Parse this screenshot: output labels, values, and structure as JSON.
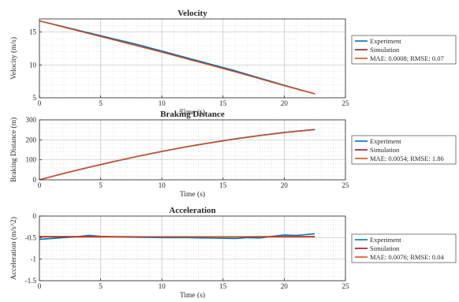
{
  "figure_title": "",
  "colors": {
    "experiment": "#0072BD",
    "simulation": "#A2142F",
    "mae_rmse": "#D95319",
    "grid": "#d6d6d6",
    "axis": "#262626"
  },
  "chart_data": [
    {
      "type": "line",
      "title": "Velocity",
      "xlabel": "Time (s)",
      "ylabel": "Velocity (m/s)",
      "xlim": [
        0,
        25
      ],
      "ylim": [
        5,
        17
      ],
      "xticks": [
        0,
        5,
        10,
        15,
        20,
        25
      ],
      "yticks": [
        5,
        10,
        15
      ],
      "grid": "on (major and minor)",
      "legend_position": "outside-right",
      "series": [
        {
          "name": "Experiment",
          "color": "#0072BD",
          "x": [
            0,
            2,
            4,
            6,
            8,
            10,
            12,
            14,
            16,
            18,
            20,
            22.5
          ],
          "y": [
            16.7,
            15.8,
            14.9,
            14.0,
            13.1,
            12.1,
            11.1,
            10.1,
            9.1,
            8.0,
            6.9,
            5.6
          ]
        },
        {
          "name": "Simulation",
          "color": "#A2142F",
          "x": [
            0,
            2,
            4,
            6,
            8,
            10,
            12,
            14,
            16,
            18,
            20,
            22.5
          ],
          "y": [
            16.7,
            15.75,
            14.8,
            13.85,
            12.9,
            11.95,
            10.95,
            9.95,
            8.95,
            7.9,
            6.85,
            5.6
          ]
        },
        {
          "name": "MAE: 0.0008; RMSE: 0.07",
          "color": "#D95319",
          "x": [
            0,
            2,
            4,
            6,
            8,
            10,
            12,
            14,
            16,
            18,
            20,
            22.5
          ],
          "y": [
            16.7,
            15.75,
            14.8,
            13.85,
            12.9,
            11.95,
            10.95,
            9.95,
            8.95,
            7.9,
            6.85,
            5.6
          ]
        }
      ]
    },
    {
      "type": "line",
      "title": "Braking Distance",
      "xlabel": "Time (s)",
      "ylabel": "Braking Distance (m)",
      "xlim": [
        0,
        25
      ],
      "ylim": [
        0,
        300
      ],
      "xticks": [
        0,
        5,
        10,
        15,
        20,
        25
      ],
      "yticks": [
        0,
        100,
        200,
        300
      ],
      "grid": "on (major and minor)",
      "legend_position": "outside-right",
      "series": [
        {
          "name": "Experiment",
          "color": "#0072BD",
          "x": [
            0,
            2,
            4,
            6,
            8,
            10,
            12,
            14,
            16,
            18,
            20,
            22.5
          ],
          "y": [
            0,
            32,
            62,
            90,
            117,
            142,
            165,
            186,
            205,
            222,
            237,
            252
          ]
        },
        {
          "name": "Simulation",
          "color": "#A2142F",
          "x": [
            0,
            2,
            4,
            6,
            8,
            10,
            12,
            14,
            16,
            18,
            20,
            22.5
          ],
          "y": [
            0,
            32,
            62,
            90,
            117,
            142,
            165,
            185,
            204,
            221,
            236,
            251
          ]
        },
        {
          "name": "MAE: 0.0054; RMSE: 1.86",
          "color": "#D95319",
          "x": [
            0,
            2,
            4,
            6,
            8,
            10,
            12,
            14,
            16,
            18,
            20,
            22.5
          ],
          "y": [
            0,
            32,
            62,
            90,
            117,
            142,
            165,
            185,
            204,
            221,
            236,
            251
          ]
        }
      ]
    },
    {
      "type": "line",
      "title": "Acceleration",
      "xlabel": "Time (s)",
      "ylabel": "Acceleration (m/s^2)",
      "xlim": [
        0,
        25
      ],
      "ylim": [
        -1.5,
        0
      ],
      "xticks": [
        0,
        5,
        10,
        15,
        20,
        25
      ],
      "yticks": [
        -1.5,
        -1,
        -0.5,
        0
      ],
      "grid": "on (major and minor)",
      "legend_position": "outside-right",
      "series": [
        {
          "name": "Experiment",
          "color": "#0072BD",
          "x": [
            0,
            1,
            2,
            3,
            4,
            5,
            6,
            8,
            10,
            12,
            14,
            16,
            17,
            18,
            19,
            20,
            21,
            22.5
          ],
          "y": [
            -0.54,
            -0.52,
            -0.5,
            -0.48,
            -0.45,
            -0.47,
            -0.48,
            -0.49,
            -0.5,
            -0.5,
            -0.51,
            -0.52,
            -0.5,
            -0.51,
            -0.47,
            -0.44,
            -0.45,
            -0.41
          ]
        },
        {
          "name": "Simulation",
          "color": "#A2142F",
          "x": [
            0,
            22.5
          ],
          "y": [
            -0.48,
            -0.48
          ]
        },
        {
          "name": "MAE: 0.0076; RMSE: 0.04",
          "color": "#D95319",
          "x": [
            0,
            5,
            10,
            15,
            20,
            22.5
          ],
          "y": [
            -0.47,
            -0.47,
            -0.48,
            -0.48,
            -0.47,
            -0.47
          ]
        }
      ]
    }
  ]
}
